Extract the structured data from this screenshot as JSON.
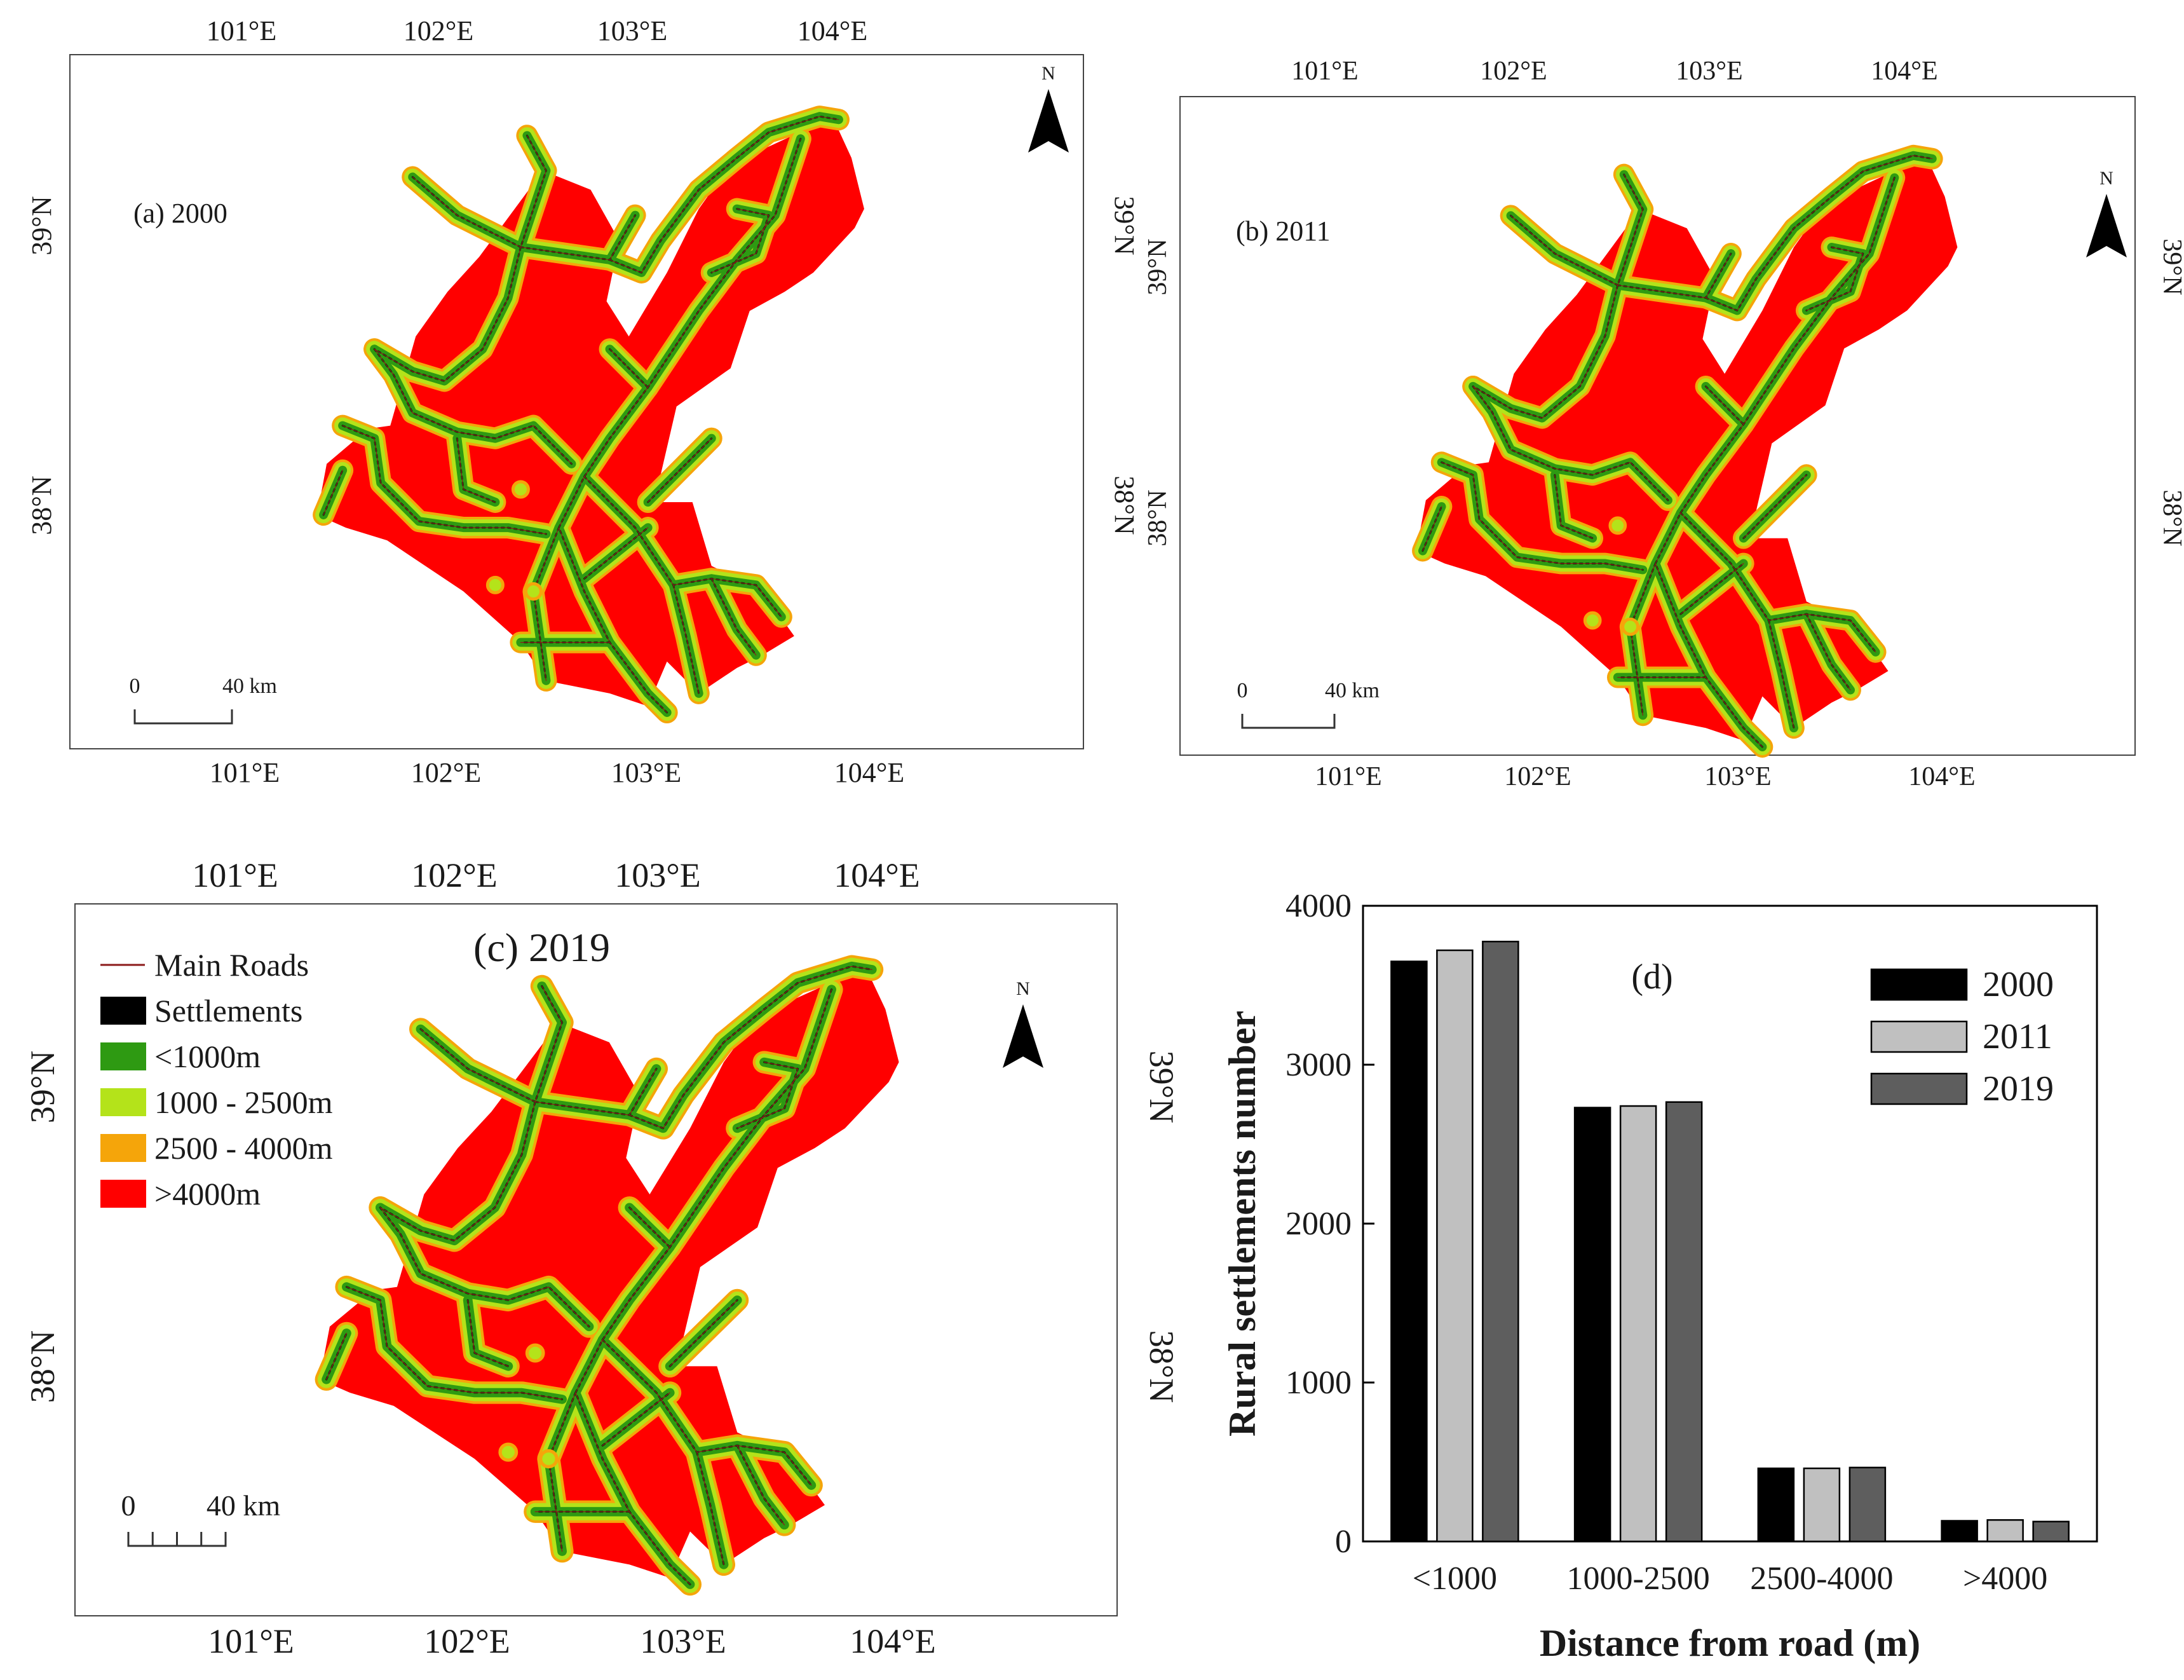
{
  "maps": [
    {
      "panel_label": "(a) 2000",
      "lon_ticks": [
        "101°E",
        "102°E",
        "103°E",
        "104°E"
      ],
      "lat_ticks": [
        "39°N",
        "38°N"
      ],
      "scale_bar": {
        "zero": "0",
        "length": "40 km"
      },
      "north_label": "N"
    },
    {
      "panel_label": "(b) 2011",
      "lon_ticks": [
        "101°E",
        "102°E",
        "103°E",
        "104°E"
      ],
      "lat_ticks": [
        "39°N",
        "38°N"
      ],
      "scale_bar": {
        "zero": "0",
        "length": "40 km"
      },
      "north_label": "N"
    },
    {
      "panel_label": "(c) 2019",
      "lon_ticks": [
        "101°E",
        "102°E",
        "103°E",
        "104°E"
      ],
      "lat_ticks": [
        "39°N",
        "38°N"
      ],
      "scale_bar": {
        "zero": "0",
        "length": "40 km"
      },
      "north_label": "N"
    }
  ],
  "legend": {
    "items": [
      {
        "label": "Main Roads",
        "color": "#8b1a1a",
        "kind": "line"
      },
      {
        "label": "Settlements",
        "color": "#000000",
        "kind": "box"
      },
      {
        "label": "<1000m",
        "color": "#2e9a12",
        "kind": "box"
      },
      {
        "label": "1000 - 2500m",
        "color": "#b4e31a",
        "kind": "box"
      },
      {
        "label": "2500 - 4000m",
        "color": "#f5a50a",
        "kind": "box"
      },
      {
        "label": ">4000m",
        "color": "#ff0000",
        "kind": "box"
      }
    ]
  },
  "chart_data": {
    "type": "bar",
    "panel_label": "(d)",
    "xlabel": "Distance from road (m)",
    "ylabel": "Rural settlements number",
    "categories": [
      "<1000",
      "1000-2500",
      "2500-4000",
      ">4000"
    ],
    "series": [
      {
        "name": "2000",
        "color": "#000000",
        "values": [
          3650,
          2730,
          460,
          130
        ]
      },
      {
        "name": "2011",
        "color": "#c0c0c0",
        "values": [
          3720,
          2740,
          460,
          135
        ]
      },
      {
        "name": "2019",
        "color": "#5e5e5e",
        "values": [
          3775,
          2765,
          465,
          125
        ]
      }
    ],
    "ylim": [
      0,
      4000
    ],
    "yticks": [
      0,
      1000,
      2000,
      3000,
      4000
    ],
    "legend_position": "top-right"
  },
  "colors": {
    "region": "#ff0000",
    "buffer_outer": "#f5a50a",
    "buffer_mid": "#b4e31a",
    "buffer_inner": "#2e9a12",
    "settlement": "#0a3a0a",
    "road": "#8b1a1a"
  }
}
